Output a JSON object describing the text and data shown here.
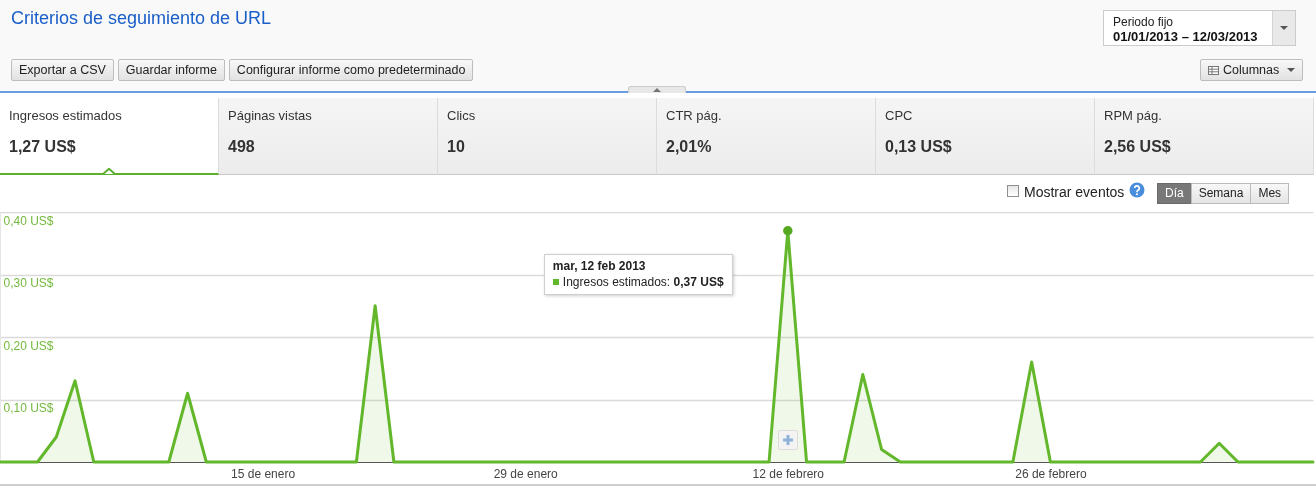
{
  "chart_data": {
    "type": "area",
    "title": "Criterios de seguimiento de URL",
    "x": [
      "2013-01-01",
      "2013-01-02",
      "2013-01-03",
      "2013-01-04",
      "2013-01-05",
      "2013-01-06",
      "2013-01-07",
      "2013-01-08",
      "2013-01-09",
      "2013-01-10",
      "2013-01-11",
      "2013-01-12",
      "2013-01-13",
      "2013-01-14",
      "2013-01-15",
      "2013-01-16",
      "2013-01-17",
      "2013-01-18",
      "2013-01-19",
      "2013-01-20",
      "2013-01-21",
      "2013-01-22",
      "2013-01-23",
      "2013-01-24",
      "2013-01-25",
      "2013-01-26",
      "2013-01-27",
      "2013-01-28",
      "2013-01-29",
      "2013-01-30",
      "2013-01-31",
      "2013-02-01",
      "2013-02-02",
      "2013-02-03",
      "2013-02-04",
      "2013-02-05",
      "2013-02-06",
      "2013-02-07",
      "2013-02-08",
      "2013-02-09",
      "2013-02-10",
      "2013-02-11",
      "2013-02-12",
      "2013-02-13",
      "2013-02-14",
      "2013-02-15",
      "2013-02-16",
      "2013-02-17",
      "2013-02-18",
      "2013-02-19",
      "2013-02-20",
      "2013-02-21",
      "2013-02-22",
      "2013-02-23",
      "2013-02-24",
      "2013-02-25",
      "2013-02-26",
      "2013-02-27",
      "2013-02-28",
      "2013-03-01",
      "2013-03-02",
      "2013-03-03",
      "2013-03-04",
      "2013-03-05",
      "2013-03-06",
      "2013-03-07",
      "2013-03-08",
      "2013-03-09",
      "2013-03-10",
      "2013-03-11",
      "2013-03-12"
    ],
    "series": [
      {
        "color": "#63b72b",
        "values": [
          0,
          0,
          0,
          0.04,
          0.13,
          0,
          0,
          0,
          0,
          0,
          0.11,
          0,
          0,
          0,
          0,
          0,
          0,
          0,
          0,
          0,
          0.25,
          0,
          0,
          0,
          0,
          0,
          0,
          0,
          0,
          0,
          0,
          0,
          0,
          0,
          0,
          0,
          0,
          0,
          0,
          0,
          0,
          0,
          0.37,
          0,
          0,
          0,
          0.14,
          0.02,
          0,
          0,
          0,
          0,
          0,
          0,
          0,
          0.16,
          0,
          0,
          0,
          0,
          0,
          0,
          0,
          0,
          0,
          0.03,
          0,
          0,
          0,
          0,
          0
        ]
      },
      {
        "type": "scatter",
        "color": "#56a820",
        "marker": "circle",
        "x": [
          "2013-02-12"
        ],
        "values": [
          0.37
        ]
      }
    ],
    "xlim": [
      "2013-01-01",
      "2013-03-12"
    ],
    "xticks": [
      {
        "value": "2013-01-15",
        "label": "15 de enero"
      },
      {
        "value": "2013-01-29",
        "label": "29 de enero"
      },
      {
        "value": "2013-02-12",
        "label": "12 de febrero"
      },
      {
        "value": "2013-02-26",
        "label": "26 de febrero"
      }
    ],
    "ylim": [
      0,
      0.4
    ],
    "yticks": [
      {
        "value": 0.1,
        "label": "0,10 US$"
      },
      {
        "value": 0.2,
        "label": "0,20 US$"
      },
      {
        "value": 0.3,
        "label": "0,30 US$"
      },
      {
        "value": 0.4,
        "label": "0,40 US$"
      }
    ],
    "grid": "y",
    "annotations": [
      "Periodo fijo",
      "01/01/2013 – 12/03/2013",
      "Exportar a CSV",
      "Guardar informe",
      "Configurar informe como predeterminado",
      "Columnas",
      "Ingresos estimados",
      "1,27 US$",
      "Páginas vistas",
      "498",
      "Clics",
      "10",
      "CTR pág.",
      "2,01%",
      "CPC",
      "0,13 US$",
      "RPM pág.",
      "2,56 US$",
      "Mostrar eventos",
      "Día",
      "Semana",
      "Mes",
      "mar, 12 feb 2013",
      "Ingresos estimados:",
      "0,37 US$"
    ]
  }
}
